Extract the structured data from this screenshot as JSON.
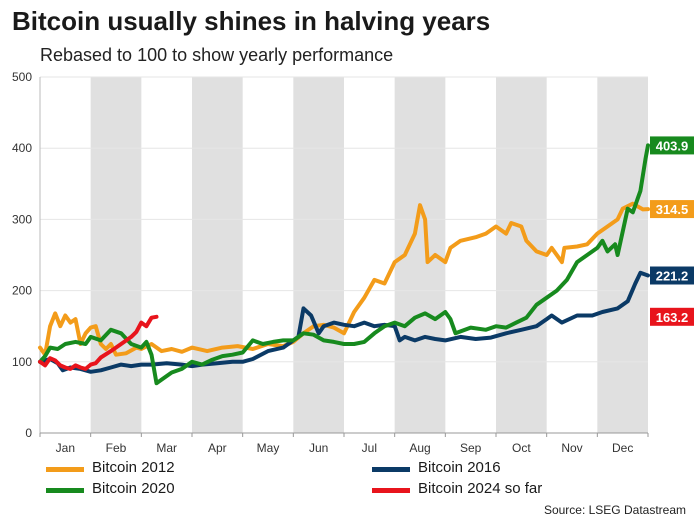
{
  "title": "Bitcoin usually shines in halving years",
  "subtitle": "Rebased to 100 to show yearly performance",
  "source": "Source: LSEG Datastream",
  "chart_data": {
    "type": "line",
    "title": "Bitcoin usually shines in halving years",
    "subtitle": "Rebased to 100 to show yearly performance",
    "xlabel": "",
    "ylabel": "",
    "x_domain": [
      0,
      12
    ],
    "ylim": [
      0,
      500
    ],
    "yticks": [
      0,
      100,
      200,
      300,
      400,
      500
    ],
    "months": [
      "Jan",
      "Feb",
      "Mar",
      "Apr",
      "May",
      "Jun",
      "Jul",
      "Aug",
      "Sep",
      "Oct",
      "Nov",
      "Dec"
    ],
    "shaded_months": [
      1,
      3,
      5,
      7,
      9,
      11
    ],
    "grid": "horizontal",
    "series": [
      {
        "name": "Bitcoin 2012",
        "color": "#f39c1a",
        "end_label": "314.5",
        "points": [
          [
            0,
            120
          ],
          [
            0.1,
            110
          ],
          [
            0.2,
            150
          ],
          [
            0.3,
            168
          ],
          [
            0.4,
            150
          ],
          [
            0.5,
            165
          ],
          [
            0.6,
            155
          ],
          [
            0.7,
            160
          ],
          [
            0.8,
            125
          ],
          [
            0.9,
            140
          ],
          [
            1.0,
            148
          ],
          [
            1.1,
            150
          ],
          [
            1.2,
            125
          ],
          [
            1.3,
            118
          ],
          [
            1.4,
            125
          ],
          [
            1.5,
            110
          ],
          [
            1.7,
            112
          ],
          [
            1.9,
            120
          ],
          [
            2.0,
            118
          ],
          [
            2.2,
            125
          ],
          [
            2.4,
            115
          ],
          [
            2.6,
            118
          ],
          [
            2.8,
            114
          ],
          [
            3.0,
            120
          ],
          [
            3.3,
            115
          ],
          [
            3.6,
            120
          ],
          [
            3.9,
            122
          ],
          [
            4.2,
            118
          ],
          [
            4.5,
            125
          ],
          [
            4.8,
            122
          ],
          [
            5.0,
            128
          ],
          [
            5.2,
            140
          ],
          [
            5.4,
            150
          ],
          [
            5.6,
            152
          ],
          [
            5.8,
            148
          ],
          [
            6.0,
            140
          ],
          [
            6.2,
            170
          ],
          [
            6.4,
            190
          ],
          [
            6.6,
            215
          ],
          [
            6.8,
            210
          ],
          [
            7.0,
            240
          ],
          [
            7.2,
            250
          ],
          [
            7.4,
            280
          ],
          [
            7.5,
            320
          ],
          [
            7.6,
            300
          ],
          [
            7.65,
            240
          ],
          [
            7.8,
            250
          ],
          [
            8.0,
            240
          ],
          [
            8.1,
            260
          ],
          [
            8.3,
            270
          ],
          [
            8.6,
            275
          ],
          [
            8.8,
            280
          ],
          [
            9.0,
            290
          ],
          [
            9.2,
            280
          ],
          [
            9.3,
            295
          ],
          [
            9.5,
            290
          ],
          [
            9.6,
            270
          ],
          [
            9.8,
            255
          ],
          [
            10.0,
            250
          ],
          [
            10.1,
            260
          ],
          [
            10.3,
            240
          ],
          [
            10.35,
            260
          ],
          [
            10.6,
            262
          ],
          [
            10.8,
            265
          ],
          [
            11.0,
            280
          ],
          [
            11.2,
            290
          ],
          [
            11.4,
            300
          ],
          [
            11.5,
            315
          ],
          [
            11.7,
            322
          ],
          [
            11.9,
            314
          ],
          [
            12.0,
            314.5
          ]
        ]
      },
      {
        "name": "Bitcoin 2016",
        "color": "#0b3a66",
        "end_label": "221.2",
        "points": [
          [
            0,
            100
          ],
          [
            0.2,
            104
          ],
          [
            0.35,
            98
          ],
          [
            0.45,
            88
          ],
          [
            0.6,
            92
          ],
          [
            0.8,
            90
          ],
          [
            1.0,
            86
          ],
          [
            1.2,
            88
          ],
          [
            1.4,
            92
          ],
          [
            1.6,
            96
          ],
          [
            1.8,
            94
          ],
          [
            2.0,
            96
          ],
          [
            2.2,
            96
          ],
          [
            2.5,
            98
          ],
          [
            2.8,
            96
          ],
          [
            3.0,
            94
          ],
          [
            3.2,
            96
          ],
          [
            3.5,
            98
          ],
          [
            3.8,
            100
          ],
          [
            4.0,
            100
          ],
          [
            4.2,
            104
          ],
          [
            4.5,
            115
          ],
          [
            4.8,
            120
          ],
          [
            5.0,
            130
          ],
          [
            5.1,
            135
          ],
          [
            5.2,
            175
          ],
          [
            5.35,
            165
          ],
          [
            5.5,
            140
          ],
          [
            5.6,
            150
          ],
          [
            5.8,
            155
          ],
          [
            6.0,
            152
          ],
          [
            6.2,
            150
          ],
          [
            6.4,
            155
          ],
          [
            6.6,
            150
          ],
          [
            6.8,
            152
          ],
          [
            7.0,
            150
          ],
          [
            7.1,
            130
          ],
          [
            7.2,
            135
          ],
          [
            7.4,
            130
          ],
          [
            7.6,
            135
          ],
          [
            7.8,
            132
          ],
          [
            8.0,
            130
          ],
          [
            8.3,
            135
          ],
          [
            8.6,
            132
          ],
          [
            8.9,
            134
          ],
          [
            9.2,
            140
          ],
          [
            9.5,
            145
          ],
          [
            9.8,
            150
          ],
          [
            10.0,
            160
          ],
          [
            10.1,
            165
          ],
          [
            10.3,
            155
          ],
          [
            10.6,
            165
          ],
          [
            10.9,
            165
          ],
          [
            11.1,
            170
          ],
          [
            11.4,
            175
          ],
          [
            11.6,
            185
          ],
          [
            11.75,
            210
          ],
          [
            11.85,
            225
          ],
          [
            12.0,
            221.2
          ]
        ]
      },
      {
        "name": "Bitcoin 2020",
        "color": "#178a1e",
        "end_label": "403.9",
        "points": [
          [
            0,
            100
          ],
          [
            0.1,
            108
          ],
          [
            0.2,
            120
          ],
          [
            0.35,
            118
          ],
          [
            0.5,
            125
          ],
          [
            0.7,
            128
          ],
          [
            0.9,
            125
          ],
          [
            1.0,
            135
          ],
          [
            1.2,
            130
          ],
          [
            1.4,
            145
          ],
          [
            1.6,
            140
          ],
          [
            1.8,
            125
          ],
          [
            2.0,
            120
          ],
          [
            2.1,
            128
          ],
          [
            2.2,
            110
          ],
          [
            2.3,
            70
          ],
          [
            2.4,
            75
          ],
          [
            2.6,
            85
          ],
          [
            2.8,
            90
          ],
          [
            3.0,
            100
          ],
          [
            3.2,
            96
          ],
          [
            3.4,
            103
          ],
          [
            3.6,
            108
          ],
          [
            3.8,
            110
          ],
          [
            4.0,
            113
          ],
          [
            4.2,
            130
          ],
          [
            4.4,
            125
          ],
          [
            4.6,
            128
          ],
          [
            4.8,
            130
          ],
          [
            5.0,
            130
          ],
          [
            5.2,
            140
          ],
          [
            5.4,
            138
          ],
          [
            5.6,
            130
          ],
          [
            5.8,
            128
          ],
          [
            6.0,
            125
          ],
          [
            6.2,
            125
          ],
          [
            6.4,
            128
          ],
          [
            6.6,
            140
          ],
          [
            6.8,
            150
          ],
          [
            7.0,
            155
          ],
          [
            7.2,
            150
          ],
          [
            7.4,
            162
          ],
          [
            7.6,
            168
          ],
          [
            7.8,
            160
          ],
          [
            8.0,
            170
          ],
          [
            8.1,
            160
          ],
          [
            8.2,
            140
          ],
          [
            8.5,
            148
          ],
          [
            8.8,
            145
          ],
          [
            9.0,
            150
          ],
          [
            9.2,
            148
          ],
          [
            9.4,
            155
          ],
          [
            9.6,
            162
          ],
          [
            9.8,
            180
          ],
          [
            10.0,
            190
          ],
          [
            10.2,
            200
          ],
          [
            10.4,
            215
          ],
          [
            10.6,
            240
          ],
          [
            10.8,
            250
          ],
          [
            11.0,
            260
          ],
          [
            11.1,
            270
          ],
          [
            11.2,
            255
          ],
          [
            11.35,
            265
          ],
          [
            11.4,
            250
          ],
          [
            11.6,
            315
          ],
          [
            11.7,
            310
          ],
          [
            11.85,
            340
          ],
          [
            11.95,
            385
          ],
          [
            12.0,
            403.9
          ]
        ]
      },
      {
        "name": "Bitcoin 2024 so far",
        "color": "#e8141c",
        "end_label": "163.2",
        "points": [
          [
            0,
            100
          ],
          [
            0.1,
            95
          ],
          [
            0.2,
            105
          ],
          [
            0.3,
            102
          ],
          [
            0.4,
            95
          ],
          [
            0.5,
            92
          ],
          [
            0.6,
            90
          ],
          [
            0.7,
            95
          ],
          [
            0.8,
            92
          ],
          [
            0.9,
            90
          ],
          [
            1.0,
            96
          ],
          [
            1.1,
            98
          ],
          [
            1.2,
            106
          ],
          [
            1.4,
            115
          ],
          [
            1.6,
            125
          ],
          [
            1.8,
            135
          ],
          [
            1.9,
            142
          ],
          [
            2.0,
            155
          ],
          [
            2.1,
            150
          ],
          [
            2.2,
            162
          ],
          [
            2.3,
            163.2
          ]
        ]
      }
    ]
  },
  "legend": [
    {
      "label": "Bitcoin 2012",
      "color": "#f39c1a"
    },
    {
      "label": "Bitcoin 2016",
      "color": "#0b3a66"
    },
    {
      "label": "Bitcoin 2020",
      "color": "#178a1e"
    },
    {
      "label": "Bitcoin 2024 so far",
      "color": "#e8141c"
    }
  ]
}
